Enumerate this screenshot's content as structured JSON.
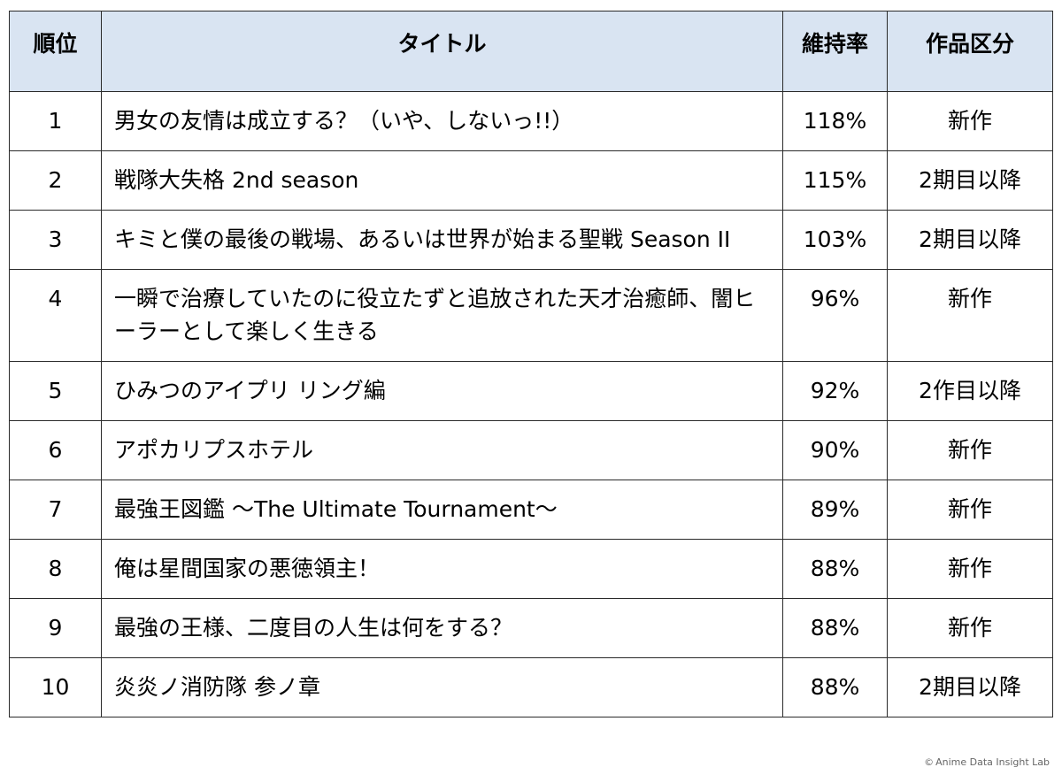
{
  "table": {
    "headers": {
      "rank": "順位",
      "title": "タイトル",
      "retention": "維持率",
      "category": "作品区分"
    },
    "rows": [
      {
        "rank": "1",
        "title": "男女の友情は成立する？（いや、しないっ!!）",
        "retention": "118%",
        "category": "新作"
      },
      {
        "rank": "2",
        "title": "戦隊大失格 2nd season",
        "retention": "115%",
        "category": "2期目以降"
      },
      {
        "rank": "3",
        "title": "キミと僕の最後の戦場、あるいは世界が始まる聖戦 Season II",
        "retention": "103%",
        "category": "2期目以降"
      },
      {
        "rank": "4",
        "title": "一瞬で治療していたのに役立たずと追放された天才治癒師、闇ヒーラーとして楽しく生きる",
        "retention": "96%",
        "category": "新作"
      },
      {
        "rank": "5",
        "title": "ひみつのアイプリ リング編",
        "retention": "92%",
        "category": "2作目以降"
      },
      {
        "rank": "6",
        "title": "アポカリプスホテル",
        "retention": "90%",
        "category": "新作"
      },
      {
        "rank": "7",
        "title": "最強王図鑑 〜The Ultimate Tournament〜",
        "retention": "89%",
        "category": "新作"
      },
      {
        "rank": "8",
        "title": "俺は星間国家の悪徳領主！",
        "retention": "88%",
        "category": "新作"
      },
      {
        "rank": "9",
        "title": "最強の王様、二度目の人生は何をする？",
        "retention": "88%",
        "category": "新作"
      },
      {
        "rank": "10",
        "title": "炎炎ノ消防隊 参ノ章",
        "retention": "88%",
        "category": "2期目以降"
      }
    ]
  },
  "footer": {
    "copyright_icon": "copyright-icon",
    "credit": "Anime Data Insight Lab"
  }
}
